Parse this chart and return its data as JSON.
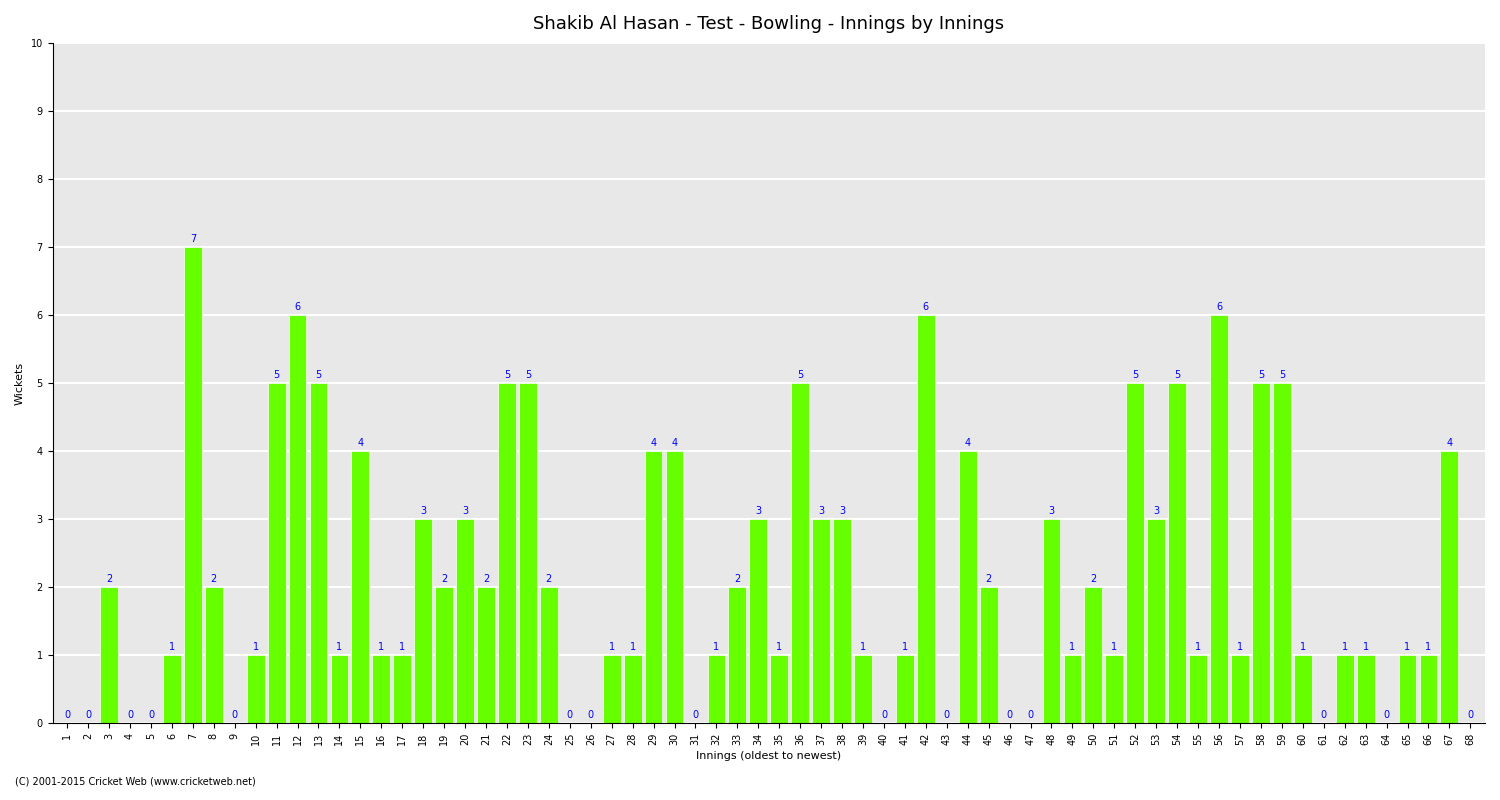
{
  "title": "Shakib Al Hasan - Test - Bowling - Innings by Innings",
  "xlabel": "Innings (oldest to newest)",
  "ylabel": "Wickets",
  "ylim": [
    0,
    10
  ],
  "yticks": [
    0,
    1,
    2,
    3,
    4,
    5,
    6,
    7,
    8,
    9,
    10
  ],
  "bar_color": "#66FF00",
  "bar_edge_color": "white",
  "label_color": "blue",
  "background_color": "white",
  "grid_color": "white",
  "plot_bg_color": "#E8E8E8",
  "copyright": "(C) 2001-2015 Cricket Web (www.cricketweb.net)",
  "innings": [
    1,
    2,
    3,
    4,
    5,
    6,
    7,
    8,
    9,
    10,
    11,
    12,
    13,
    14,
    15,
    16,
    17,
    18,
    19,
    20,
    21,
    22,
    23,
    24,
    25,
    26,
    27,
    28,
    29,
    30,
    31,
    32,
    33,
    34,
    35,
    36,
    37,
    38,
    39,
    40,
    41,
    42,
    43,
    44,
    45,
    46,
    47,
    48,
    49,
    50,
    51,
    52,
    53,
    54,
    55,
    56,
    57,
    58,
    59,
    60,
    61,
    62,
    63,
    64,
    65,
    66,
    67,
    68
  ],
  "wickets": [
    0,
    0,
    2,
    0,
    0,
    1,
    7,
    2,
    0,
    1,
    5,
    6,
    5,
    1,
    4,
    1,
    1,
    3,
    2,
    3,
    2,
    5,
    5,
    2,
    0,
    0,
    1,
    1,
    4,
    4,
    0,
    1,
    2,
    3,
    1,
    5,
    3,
    3,
    1,
    0,
    1,
    6,
    0,
    4,
    2,
    0,
    0,
    3,
    1,
    2,
    1,
    5,
    3,
    5,
    1,
    6,
    1,
    5,
    5,
    1,
    0,
    1,
    1,
    0,
    1,
    1,
    4,
    0
  ],
  "title_fontsize": 13,
  "label_fontsize": 8,
  "tick_fontsize": 7,
  "bar_label_fontsize": 7
}
